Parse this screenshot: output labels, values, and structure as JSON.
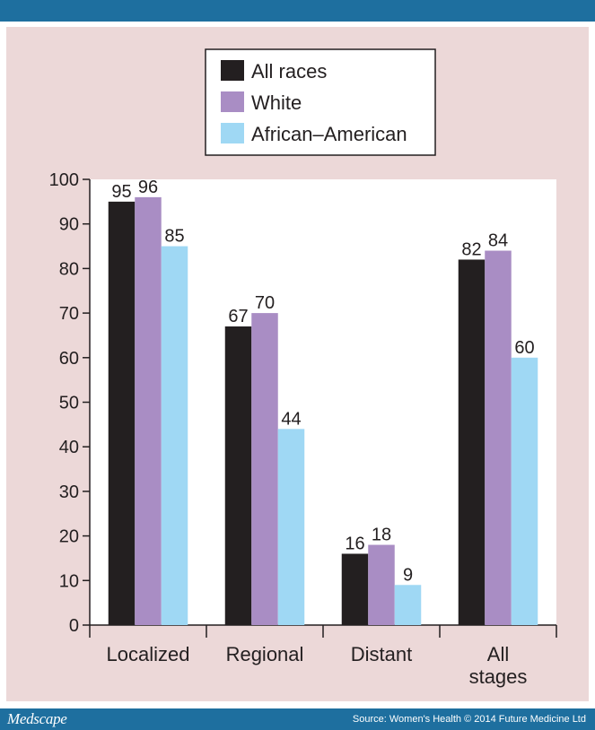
{
  "footer": {
    "brand": "Medscape",
    "source": "Source: Women's Health © 2014 Future Medicine Ltd"
  },
  "colors": {
    "header_bar": "#1e6f9f",
    "panel_background": "#ecd8d8",
    "plot_background": "#ffffff"
  },
  "chart_data": {
    "type": "bar",
    "title": "",
    "xlabel": "",
    "ylabel": "",
    "ylim": [
      0,
      100
    ],
    "yticks": [
      0,
      10,
      20,
      30,
      40,
      50,
      60,
      70,
      80,
      90,
      100
    ],
    "grid": false,
    "legend_position": "top-center",
    "categories": [
      [
        "Localized"
      ],
      [
        "Regional"
      ],
      [
        "Distant"
      ],
      [
        "All",
        "stages"
      ]
    ],
    "series": [
      {
        "name": "All races",
        "color": "#231f20",
        "values": [
          95,
          67,
          16,
          82
        ]
      },
      {
        "name": "White",
        "color": "#a98dc4",
        "values": [
          96,
          70,
          18,
          84
        ]
      },
      {
        "name": "African–American",
        "color": "#9fd8f4",
        "values": [
          85,
          44,
          9,
          60
        ]
      }
    ]
  }
}
